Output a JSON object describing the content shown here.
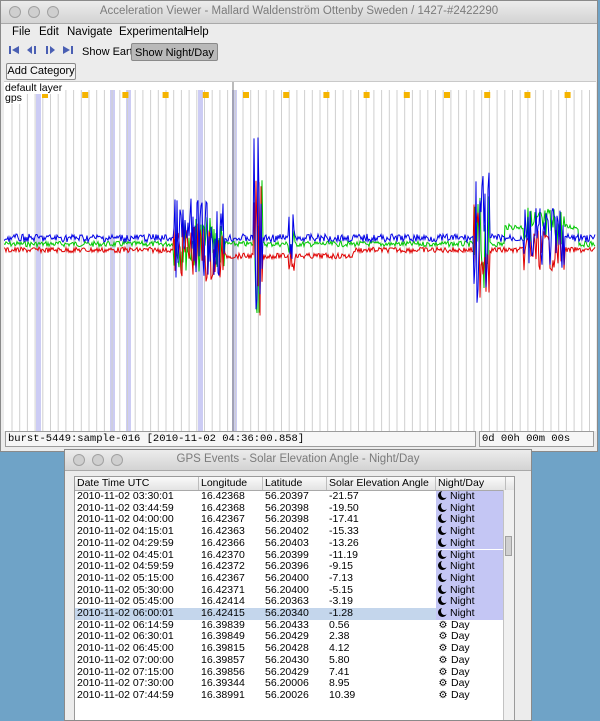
{
  "main_window": {
    "title": "Acceleration Viewer - Mallard Waldenström Ottenby Sweden / 1427-#2422290",
    "menu": [
      "File",
      "Edit",
      "Navigate",
      "Experimental",
      "Help"
    ],
    "toolbar": {
      "icons": [
        "skip-to-start-icon",
        "step-back-icon",
        "step-forward-icon",
        "skip-to-end-icon"
      ],
      "show_earth": "Show Earth",
      "show_night_day": "Show Night/Day"
    },
    "add_category": "Add Category",
    "layers": [
      "default layer",
      "gps"
    ],
    "status_sample": "burst-5449:sample-016 [2010-11-02 04:36:00.858]",
    "status_duration": "0d 00h 00m 00s",
    "series_colors": {
      "x": "#e00000",
      "y": "#00c800",
      "z": "#0000e6"
    }
  },
  "gps_window": {
    "title": "GPS Events - Solar Elevation Angle - Night/Day",
    "columns": [
      "Date Time UTC",
      "Longitude",
      "Latitude",
      "Solar Elevation Angle",
      "Night/Day"
    ],
    "rows": [
      [
        "2010-11-02 03:30:01",
        "16.42368",
        "56.20397",
        "-21.57",
        "Night"
      ],
      [
        "2010-11-02 03:44:59",
        "16.42368",
        "56.20398",
        "-19.50",
        "Night"
      ],
      [
        "2010-11-02 04:00:00",
        "16.42367",
        "56.20398",
        "-17.41",
        "Night"
      ],
      [
        "2010-11-02 04:15:01",
        "16.42363",
        "56.20402",
        "-15.33",
        "Night"
      ],
      [
        "2010-11-02 04:29:59",
        "16.42366",
        "56.20403",
        "-13.26",
        "Night"
      ],
      [
        "2010-11-02 04:45:01",
        "16.42370",
        "56.20399",
        "-11.19",
        "Night"
      ],
      [
        "2010-11-02 04:59:59",
        "16.42372",
        "56.20396",
        "-9.15",
        "Night"
      ],
      [
        "2010-11-02 05:15:00",
        "16.42367",
        "56.20400",
        "-7.13",
        "Night"
      ],
      [
        "2010-11-02 05:30:00",
        "16.42371",
        "56.20400",
        "-5.15",
        "Night"
      ],
      [
        "2010-11-02 05:45:00",
        "16.42414",
        "56.20363",
        "-3.19",
        "Night"
      ],
      [
        "2010-11-02 06:00:01",
        "16.42415",
        "56.20340",
        "-1.28",
        "Night"
      ],
      [
        "2010-11-02 06:14:59",
        "16.39839",
        "56.20433",
        "0.56",
        "Day"
      ],
      [
        "2010-11-02 06:30:01",
        "16.39849",
        "56.20429",
        "2.38",
        "Day"
      ],
      [
        "2010-11-02 06:45:00",
        "16.39815",
        "56.20428",
        "4.12",
        "Day"
      ],
      [
        "2010-11-02 07:00:00",
        "16.39857",
        "56.20430",
        "5.80",
        "Day"
      ],
      [
        "2010-11-02 07:15:00",
        "16.39856",
        "56.20429",
        "7.41",
        "Day"
      ],
      [
        "2010-11-02 07:30:00",
        "16.39344",
        "56.20006",
        "8.95",
        "Day"
      ],
      [
        "2010-11-02 07:44:59",
        "16.38991",
        "56.20026",
        "10.39",
        "Day"
      ]
    ],
    "selected_row": 10
  }
}
